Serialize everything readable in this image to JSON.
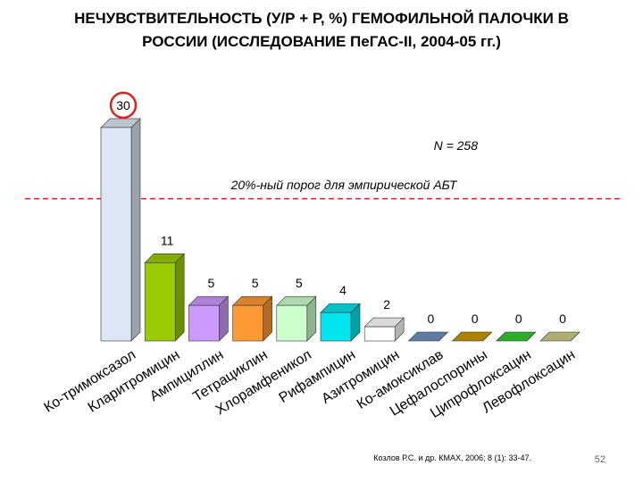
{
  "chart_data": {
    "type": "bar3d",
    "title": [
      "НЕЧУВСТВИТЕЛЬНОСТЬ (У/Р + Р, %) ГЕМОФИЛЬНОЙ ПАЛОЧКИ В",
      "РОССИИ (ИССЛЕДОВАНИЕ ПеГАС-II, 2004-05 гг.)"
    ],
    "annotations": [
      "N = 258",
      "20%-ный порог для эмпирической АБТ"
    ],
    "threshold": 20,
    "categories": [
      "Ко-тримоксазол",
      "Кларитромицин",
      "Ампициллин",
      "Тетрациклин",
      "Хлорамфеникол",
      "Рифампицин",
      "Азитромицин",
      "Ко-амоксиклав",
      "Цефалоспорины",
      "Ципрофлоксацин",
      "Левофлоксацин"
    ],
    "values": [
      30,
      11,
      5,
      5,
      5,
      4,
      2,
      0,
      0,
      0,
      0
    ],
    "colors": [
      "#dce6f4",
      "#99cc00",
      "#cc99ff",
      "#ff9933",
      "#ccffcc",
      "#00e5ee",
      "#ffffff",
      "#6f8fc0",
      "#cc9900",
      "#33cc33",
      "#cccc88"
    ],
    "source": "Козлов Р.С. и др. КМАХ, 2006; 8 (1): 33-47.",
    "page_number": "52"
  }
}
